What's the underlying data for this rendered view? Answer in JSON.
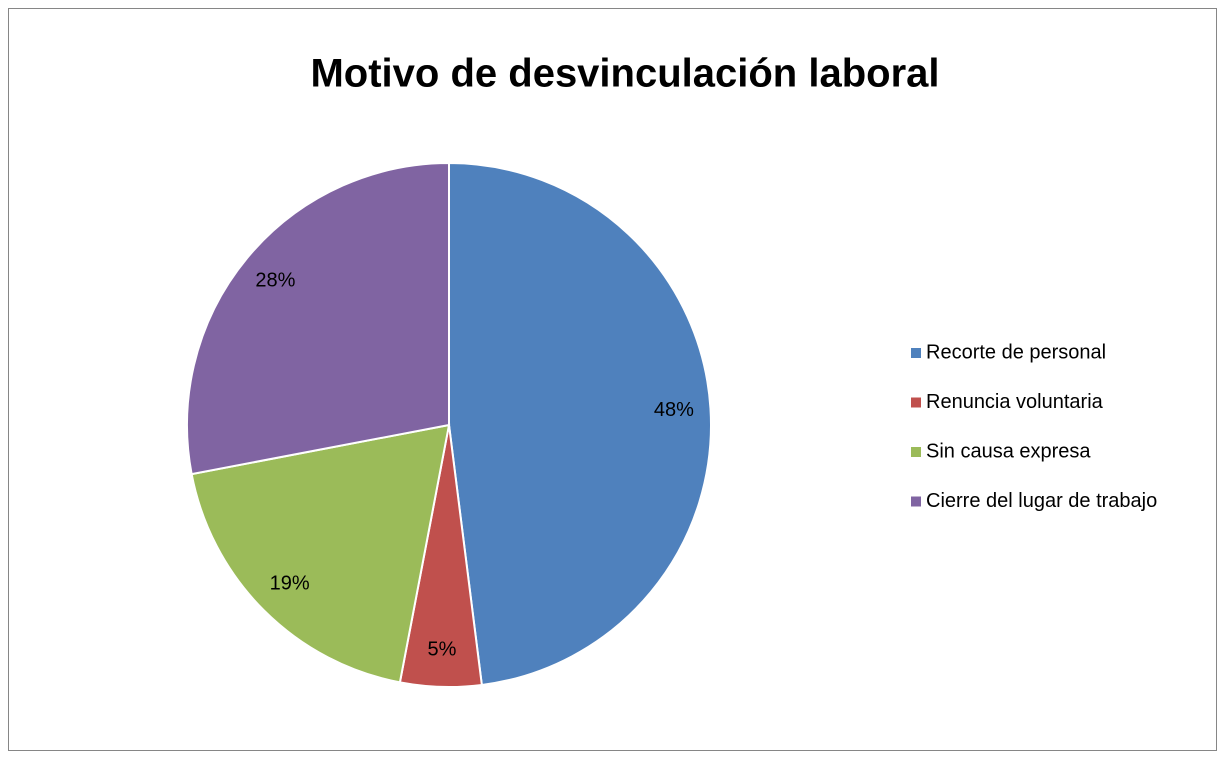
{
  "chart_data": {
    "type": "pie",
    "title": "Motivo de desvinculación laboral",
    "categories": [
      "Recorte de personal",
      "Renuncia voluntaria",
      "Sin causa expresa",
      "Cierre del lugar de trabajo"
    ],
    "values": [
      48,
      5,
      19,
      28
    ],
    "value_labels": [
      "48%",
      "5%",
      "19%",
      "28%"
    ],
    "colors": [
      "#4f81bd",
      "#c0504d",
      "#9bbb59",
      "#8064a2"
    ],
    "legend": "right"
  }
}
